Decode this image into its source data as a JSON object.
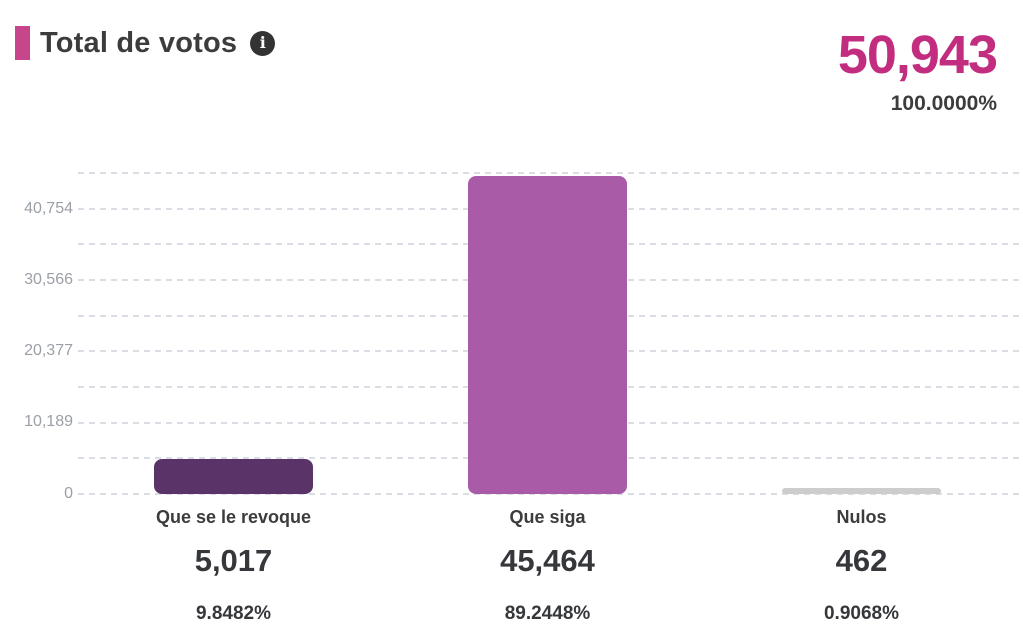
{
  "header": {
    "title": "Total de votos"
  },
  "colors": {
    "accent_pink": "#c6458b",
    "total_pink": "#c22d80",
    "bar_revoque": "#5a3469",
    "bar_siga": "#a95ba8",
    "bar_nulos": "#cdcdcd",
    "text_dark": "#3c3c3c",
    "axis_tick_gray": "#9ba0a6",
    "gridline_gray": "#dadde3",
    "info_icon_bg": "#333333"
  },
  "icons": {
    "info": "info-circle"
  },
  "chart_data": {
    "type": "bar",
    "title": "Total de votos",
    "categories": [
      "Que se le revoque",
      "Que siga",
      "Nulos"
    ],
    "series": [
      {
        "label": "Que se le revoque",
        "value": 5017,
        "value_text": "5,017",
        "percent_text": "9.8482%",
        "color": "#5a3469"
      },
      {
        "label": "Que siga",
        "value": 45464,
        "value_text": "45,464",
        "percent_text": "89.2448%",
        "color": "#a95ba8"
      },
      {
        "label": "Nulos",
        "value": 462,
        "value_text": "462",
        "percent_text": "0.9068%",
        "color": "#cdcdcd"
      }
    ],
    "total": {
      "value": 50943,
      "value_text": "50,943",
      "percent_text": "100.0000%"
    },
    "y_axis": {
      "ylim": [
        0,
        45849
      ],
      "scale_max": 45848.7,
      "tick_values": [
        0,
        10189,
        20377,
        30566,
        40754
      ],
      "tick_labels": [
        "0",
        "10,189",
        "20,377",
        "30,566",
        "40,754"
      ],
      "minor_gridlines_at_half_interval": true,
      "gridline_count": 10
    },
    "xlabel": "",
    "ylabel": "",
    "grid": "horizontal-dashed",
    "legend": "none"
  }
}
